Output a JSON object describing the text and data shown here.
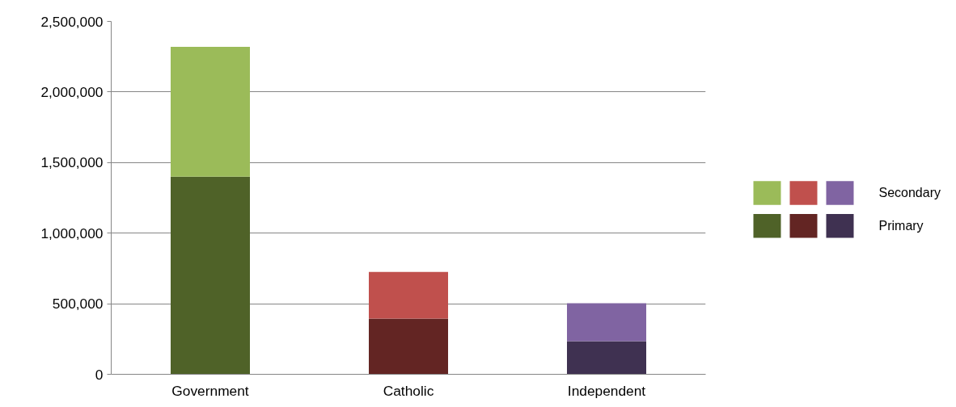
{
  "chart_data": {
    "type": "bar",
    "stacked": true,
    "categories": [
      "Government",
      "Catholic",
      "Independent"
    ],
    "series": [
      {
        "name": "Primary",
        "colors": [
          "#4f6228",
          "#632523",
          "#3f3151"
        ],
        "values": [
          1400000,
          395000,
          235000
        ]
      },
      {
        "name": "Secondary",
        "colors": [
          "#9bbb59",
          "#c0504d",
          "#8064a2"
        ],
        "values": [
          920000,
          330000,
          268000
        ]
      }
    ],
    "ylim": [
      0,
      2500000
    ],
    "yticks": [
      {
        "value": 0,
        "label": "0"
      },
      {
        "value": 500000,
        "label": "500,000"
      },
      {
        "value": 1000000,
        "label": "1,000,000"
      },
      {
        "value": 1500000,
        "label": "1,500,000"
      },
      {
        "value": 2000000,
        "label": "2,000,000"
      },
      {
        "value": 2500000,
        "label": "2,500,000"
      }
    ],
    "grid": "y",
    "legend": "right"
  }
}
